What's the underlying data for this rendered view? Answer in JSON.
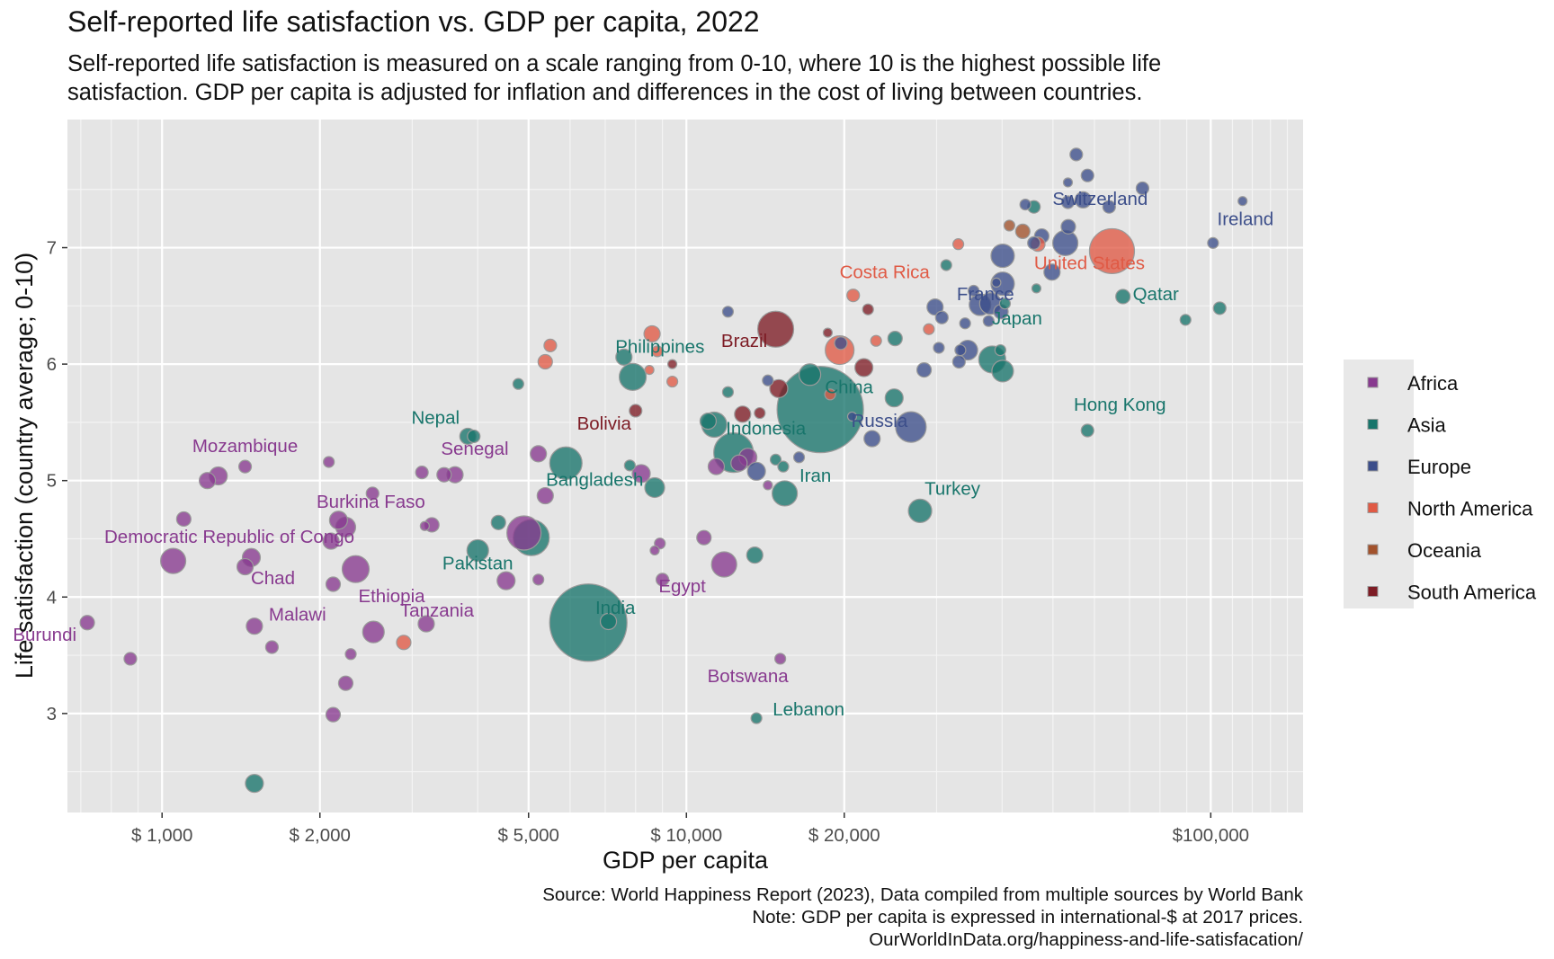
{
  "title": "Self-reported life satisfaction vs. GDP per capita, 2022",
  "subtitle_lines": [
    "Self-reported life satisfaction is measured on a scale ranging from 0-10, where 10 is the highest possible life",
    "satisfaction. GDP per capita is adjusted for inflation and differences in the cost of living between countries."
  ],
  "caption_lines": [
    "Source: World Happiness Report (2023), Data compiled from multiple sources by World Bank",
    "Note: GDP per capita is expressed in international-$ at 2017 prices.",
    "OurWorldInData.org/happiness-and-life-satisfacation/"
  ],
  "chart_data": {
    "type": "scatter",
    "x_scale": "log",
    "xlabel": "GDP per capita",
    "ylabel": "Life satisfaction (country average; 0-10)",
    "xlim": [
      660,
      150000
    ],
    "ylim": [
      2.15,
      8.1
    ],
    "x_ticks": [
      {
        "value": 1000,
        "label": "$  1,000"
      },
      {
        "value": 2000,
        "label": "$  2,000"
      },
      {
        "value": 5000,
        "label": "$  5,000"
      },
      {
        "value": 10000,
        "label": "$ 10,000"
      },
      {
        "value": 20000,
        "label": "$ 20,000"
      },
      {
        "value": 100000,
        "label": "$100,000"
      }
    ],
    "y_ticks": [
      3,
      4,
      5,
      6,
      7
    ],
    "grid": true,
    "legend_position": "right",
    "series": [
      {
        "name": "Africa",
        "color": "#883A8F"
      },
      {
        "name": "Asia",
        "color": "#18756B"
      },
      {
        "name": "Europe",
        "color": "#3C4E8A"
      },
      {
        "name": "North America",
        "color": "#E05A45"
      },
      {
        "name": "Oceania",
        "color": "#A2522C"
      },
      {
        "name": "South America",
        "color": "#7D1C25"
      }
    ],
    "points": [
      {
        "s": 0,
        "x": 720,
        "y": 3.78,
        "r": 8,
        "label": "Burundi",
        "lx": -12,
        "ly": 20,
        "anchor": "end"
      },
      {
        "s": 0,
        "x": 870,
        "y": 3.47,
        "r": 7
      },
      {
        "s": 0,
        "x": 1050,
        "y": 4.31,
        "r": 14,
        "label": "Democratic Republic of Congo",
        "lx": 2,
        "ly": -20,
        "anchor": "start",
        "start_at": 116
      },
      {
        "s": 0,
        "x": 1100,
        "y": 4.67,
        "r": 8
      },
      {
        "s": 0,
        "x": 1220,
        "y": 5.0,
        "r": 9
      },
      {
        "s": 0,
        "x": 1280,
        "y": 5.04,
        "r": 10
      },
      {
        "s": 0,
        "x": 1440,
        "y": 5.12,
        "r": 7,
        "label": "Mozambique",
        "lx": 0,
        "ly": -16,
        "anchor": "middle"
      },
      {
        "s": 0,
        "x": 1440,
        "y": 4.26,
        "r": 9
      },
      {
        "s": 0,
        "x": 1480,
        "y": 4.34,
        "r": 10,
        "label": "Chad",
        "lx": 24,
        "ly": 30,
        "anchor": "middle"
      },
      {
        "s": 0,
        "x": 1500,
        "y": 3.75,
        "r": 9,
        "label": "Malawi",
        "lx": 16,
        "ly": -6,
        "anchor": "start"
      },
      {
        "s": 0,
        "x": 1620,
        "y": 3.57,
        "r": 7
      },
      {
        "s": 0,
        "x": 2080,
        "y": 5.16,
        "r": 6
      },
      {
        "s": 0,
        "x": 2100,
        "y": 4.48,
        "r": 9
      },
      {
        "s": 0,
        "x": 2120,
        "y": 4.11,
        "r": 8
      },
      {
        "s": 0,
        "x": 2120,
        "y": 2.99,
        "r": 8
      },
      {
        "s": 0,
        "x": 2170,
        "y": 4.66,
        "r": 10,
        "label": "Burkina Faso",
        "lx": 36,
        "ly": -14,
        "anchor": "middle"
      },
      {
        "s": 0,
        "x": 2240,
        "y": 4.6,
        "r": 11
      },
      {
        "s": 0,
        "x": 2240,
        "y": 3.26,
        "r": 8
      },
      {
        "s": 0,
        "x": 2290,
        "y": 3.51,
        "r": 6
      },
      {
        "s": 0,
        "x": 2340,
        "y": 4.24,
        "r": 15,
        "label": "Ethiopia",
        "lx": 40,
        "ly": 37,
        "anchor": "middle"
      },
      {
        "s": 0,
        "x": 2520,
        "y": 4.89,
        "r": 7
      },
      {
        "s": 0,
        "x": 2530,
        "y": 3.7,
        "r": 12
      },
      {
        "s": 0,
        "x": 3130,
        "y": 5.07,
        "r": 7
      },
      {
        "s": 0,
        "x": 3170,
        "y": 4.61,
        "r": 5
      },
      {
        "s": 0,
        "x": 3190,
        "y": 3.77,
        "r": 9,
        "label": "Tanzania",
        "lx": 12,
        "ly": -8,
        "anchor": "middle"
      },
      {
        "s": 0,
        "x": 3270,
        "y": 4.62,
        "r": 8
      },
      {
        "s": 0,
        "x": 3450,
        "y": 5.05,
        "r": 8
      },
      {
        "s": 0,
        "x": 3620,
        "y": 5.05,
        "r": 9,
        "label": "Senegal",
        "lx": 22,
        "ly": -22,
        "anchor": "middle"
      },
      {
        "s": 0,
        "x": 4530,
        "y": 4.14,
        "r": 10
      },
      {
        "s": 0,
        "x": 4900,
        "y": 4.55,
        "r": 19
      },
      {
        "s": 0,
        "x": 5220,
        "y": 4.15,
        "r": 6
      },
      {
        "s": 0,
        "x": 5220,
        "y": 5.23,
        "r": 9
      },
      {
        "s": 0,
        "x": 5380,
        "y": 4.87,
        "r": 9
      },
      {
        "s": 0,
        "x": 8700,
        "y": 4.4,
        "r": 5
      },
      {
        "s": 0,
        "x": 8900,
        "y": 4.46,
        "r": 6
      },
      {
        "s": 0,
        "x": 9000,
        "y": 4.15,
        "r": 7,
        "label": "Egypt",
        "lx": 22,
        "ly": 14,
        "anchor": "middle"
      },
      {
        "s": 0,
        "x": 8200,
        "y": 5.06,
        "r": 10
      },
      {
        "s": 0,
        "x": 10800,
        "y": 4.51,
        "r": 8
      },
      {
        "s": 0,
        "x": 11400,
        "y": 5.12,
        "r": 9
      },
      {
        "s": 0,
        "x": 11800,
        "y": 4.28,
        "r": 14
      },
      {
        "s": 0,
        "x": 12600,
        "y": 5.15,
        "r": 9
      },
      {
        "s": 0,
        "x": 13100,
        "y": 5.2,
        "r": 10
      },
      {
        "s": 0,
        "x": 14300,
        "y": 4.96,
        "r": 5
      },
      {
        "s": 0,
        "x": 15100,
        "y": 3.47,
        "r": 6,
        "label": "Botswana",
        "lx": -36,
        "ly": 26,
        "anchor": "middle"
      },
      {
        "s": 1,
        "x": 1500,
        "y": 2.4,
        "r": 10
      },
      {
        "s": 1,
        "x": 3830,
        "y": 5.38,
        "r": 9,
        "label": "Nepal",
        "lx": -36,
        "ly": -14,
        "anchor": "middle"
      },
      {
        "s": 1,
        "x": 3930,
        "y": 5.38,
        "r": 7
      },
      {
        "s": 1,
        "x": 4000,
        "y": 4.4,
        "r": 12,
        "label": "Pakistan",
        "lx": 0,
        "ly": 21,
        "anchor": "middle"
      },
      {
        "s": 1,
        "x": 4380,
        "y": 4.64,
        "r": 8
      },
      {
        "s": 1,
        "x": 4780,
        "y": 5.83,
        "r": 6
      },
      {
        "s": 1,
        "x": 5060,
        "y": 4.51,
        "r": 20
      },
      {
        "s": 1,
        "x": 5890,
        "y": 5.15,
        "r": 18,
        "label": "Bangladesh",
        "lx": 32,
        "ly": 25,
        "anchor": "middle"
      },
      {
        "s": 1,
        "x": 6500,
        "y": 3.78,
        "r": 43,
        "label": "India",
        "lx": 30,
        "ly": -10,
        "anchor": "middle"
      },
      {
        "s": 1,
        "x": 7100,
        "y": 3.79,
        "r": 9
      },
      {
        "s": 1,
        "x": 7600,
        "y": 6.06,
        "r": 9,
        "label": "Philippines",
        "lx": 40,
        "ly": -5,
        "anchor": "middle"
      },
      {
        "s": 1,
        "x": 7900,
        "y": 5.89,
        "r": 15
      },
      {
        "s": 1,
        "x": 7800,
        "y": 5.13,
        "r": 6
      },
      {
        "s": 1,
        "x": 8700,
        "y": 4.94,
        "r": 11
      },
      {
        "s": 1,
        "x": 11000,
        "y": 5.51,
        "r": 9
      },
      {
        "s": 1,
        "x": 11300,
        "y": 5.48,
        "r": 14
      },
      {
        "s": 1,
        "x": 12000,
        "y": 5.76,
        "r": 6
      },
      {
        "s": 1,
        "x": 12300,
        "y": 5.24,
        "r": 22,
        "label": "Indonesia",
        "lx": 36,
        "ly": -20,
        "anchor": "middle"
      },
      {
        "s": 1,
        "x": 13500,
        "y": 4.36,
        "r": 9
      },
      {
        "s": 1,
        "x": 14800,
        "y": 5.18,
        "r": 6
      },
      {
        "s": 1,
        "x": 15300,
        "y": 5.12,
        "r": 6
      },
      {
        "s": 1,
        "x": 15400,
        "y": 4.89,
        "r": 14,
        "label": "Iran",
        "lx": 34,
        "ly": -13,
        "anchor": "middle"
      },
      {
        "s": 1,
        "x": 13600,
        "y": 2.96,
        "r": 6,
        "label": "Lebanon",
        "lx": 58,
        "ly": -3,
        "anchor": "middle"
      },
      {
        "s": 1,
        "x": 17200,
        "y": 5.91,
        "r": 12
      },
      {
        "s": 1,
        "x": 18000,
        "y": 5.61,
        "r": 48,
        "label": "China",
        "lx": 32,
        "ly": -18,
        "anchor": "middle"
      },
      {
        "s": 1,
        "x": 24900,
        "y": 5.71,
        "r": 10
      },
      {
        "s": 1,
        "x": 25000,
        "y": 6.22,
        "r": 8
      },
      {
        "s": 1,
        "x": 27900,
        "y": 4.74,
        "r": 13,
        "label": "Turkey",
        "lx": 36,
        "ly": -18,
        "anchor": "middle"
      },
      {
        "s": 1,
        "x": 31300,
        "y": 6.85,
        "r": 6
      },
      {
        "s": 1,
        "x": 38300,
        "y": 6.04,
        "r": 15
      },
      {
        "s": 1,
        "x": 39700,
        "y": 6.12,
        "r": 6
      },
      {
        "s": 1,
        "x": 40100,
        "y": 5.94,
        "r": 12,
        "label": "Japan",
        "lx": 16,
        "ly": -52,
        "anchor": "middle"
      },
      {
        "s": 1,
        "x": 40500,
        "y": 6.52,
        "r": 6
      },
      {
        "s": 1,
        "x": 46500,
        "y": 6.65,
        "r": 5
      },
      {
        "s": 1,
        "x": 46000,
        "y": 7.35,
        "r": 7
      },
      {
        "s": 1,
        "x": 58200,
        "y": 5.43,
        "r": 7,
        "label": "Hong Kong",
        "lx": 36,
        "ly": -22,
        "anchor": "middle"
      },
      {
        "s": 1,
        "x": 68000,
        "y": 6.58,
        "r": 8
      },
      {
        "s": 1,
        "x": 89500,
        "y": 6.38,
        "r": 6,
        "label": "Qatar",
        "lx": -33,
        "ly": -22,
        "anchor": "middle"
      },
      {
        "s": 1,
        "x": 104000,
        "y": 6.48,
        "r": 7
      },
      {
        "s": 2,
        "x": 12000,
        "y": 6.45,
        "r": 6
      },
      {
        "s": 2,
        "x": 14300,
        "y": 5.86,
        "r": 6
      },
      {
        "s": 2,
        "x": 13600,
        "y": 5.08,
        "r": 10
      },
      {
        "s": 2,
        "x": 16400,
        "y": 5.2,
        "r": 6
      },
      {
        "s": 2,
        "x": 19700,
        "y": 6.18,
        "r": 7
      },
      {
        "s": 2,
        "x": 20700,
        "y": 5.55,
        "r": 5
      },
      {
        "s": 2,
        "x": 22600,
        "y": 5.36,
        "r": 9
      },
      {
        "s": 2,
        "x": 26800,
        "y": 5.46,
        "r": 17,
        "label": "Russia",
        "lx": -35,
        "ly": 0,
        "anchor": "middle"
      },
      {
        "s": 2,
        "x": 28400,
        "y": 5.95,
        "r": 8
      },
      {
        "s": 2,
        "x": 29800,
        "y": 6.49,
        "r": 9
      },
      {
        "s": 2,
        "x": 30300,
        "y": 6.14,
        "r": 6
      },
      {
        "s": 2,
        "x": 30700,
        "y": 6.4,
        "r": 7
      },
      {
        "s": 2,
        "x": 33100,
        "y": 6.02,
        "r": 7
      },
      {
        "s": 2,
        "x": 33300,
        "y": 6.12,
        "r": 6
      },
      {
        "s": 2,
        "x": 34400,
        "y": 6.12,
        "r": 11
      },
      {
        "s": 2,
        "x": 34000,
        "y": 6.35,
        "r": 6
      },
      {
        "s": 2,
        "x": 35300,
        "y": 6.63,
        "r": 6
      },
      {
        "s": 2,
        "x": 36300,
        "y": 6.51,
        "r": 12,
        "label": "France",
        "lx": 6,
        "ly": -5,
        "anchor": "middle"
      },
      {
        "s": 2,
        "x": 37700,
        "y": 6.37,
        "r": 6
      },
      {
        "s": 2,
        "x": 38000,
        "y": 6.52,
        "r": 12
      },
      {
        "s": 2,
        "x": 39800,
        "y": 6.45,
        "r": 8
      },
      {
        "s": 2,
        "x": 40100,
        "y": 6.69,
        "r": 13
      },
      {
        "s": 2,
        "x": 40100,
        "y": 6.93,
        "r": 13
      },
      {
        "s": 2,
        "x": 39000,
        "y": 6.7,
        "r": 5
      },
      {
        "s": 2,
        "x": 44300,
        "y": 7.37,
        "r": 6
      },
      {
        "s": 2,
        "x": 46000,
        "y": 7.04,
        "r": 7
      },
      {
        "s": 2,
        "x": 47600,
        "y": 7.1,
        "r": 8
      },
      {
        "s": 2,
        "x": 49800,
        "y": 6.79,
        "r": 9
      },
      {
        "s": 2,
        "x": 52800,
        "y": 7.04,
        "r": 14
      },
      {
        "s": 2,
        "x": 53500,
        "y": 7.18,
        "r": 8
      },
      {
        "s": 2,
        "x": 53400,
        "y": 7.39,
        "r": 7
      },
      {
        "s": 2,
        "x": 53400,
        "y": 7.56,
        "r": 5
      },
      {
        "s": 2,
        "x": 55400,
        "y": 7.8,
        "r": 7
      },
      {
        "s": 2,
        "x": 57100,
        "y": 7.41,
        "r": 9
      },
      {
        "s": 2,
        "x": 58200,
        "y": 7.62,
        "r": 7
      },
      {
        "s": 2,
        "x": 64000,
        "y": 7.35,
        "r": 7,
        "label": "Switzerland",
        "lx": -10,
        "ly": -2,
        "anchor": "middle"
      },
      {
        "s": 2,
        "x": 74100,
        "y": 7.51,
        "r": 7
      },
      {
        "s": 2,
        "x": 101000,
        "y": 7.04,
        "r": 6,
        "label": "Ireland",
        "lx": 36,
        "ly": -20,
        "anchor": "middle"
      },
      {
        "s": 2,
        "x": 115000,
        "y": 7.4,
        "r": 5
      },
      {
        "s": 3,
        "x": 2890,
        "y": 3.61,
        "r": 8
      },
      {
        "s": 3,
        "x": 5380,
        "y": 6.02,
        "r": 8
      },
      {
        "s": 3,
        "x": 5500,
        "y": 6.16,
        "r": 7
      },
      {
        "s": 3,
        "x": 8600,
        "y": 6.26,
        "r": 9
      },
      {
        "s": 3,
        "x": 8800,
        "y": 6.11,
        "r": 6
      },
      {
        "s": 3,
        "x": 9400,
        "y": 5.85,
        "r": 6
      },
      {
        "s": 3,
        "x": 8500,
        "y": 5.95,
        "r": 5
      },
      {
        "s": 3,
        "x": 19600,
        "y": 6.12,
        "r": 16
      },
      {
        "s": 3,
        "x": 18800,
        "y": 5.74,
        "r": 6
      },
      {
        "s": 3,
        "x": 20800,
        "y": 6.59,
        "r": 7,
        "label": "Costa Rica",
        "lx": 35,
        "ly": -19,
        "anchor": "middle"
      },
      {
        "s": 3,
        "x": 23000,
        "y": 6.2,
        "r": 6
      },
      {
        "s": 3,
        "x": 29000,
        "y": 6.3,
        "r": 6
      },
      {
        "s": 3,
        "x": 33000,
        "y": 7.03,
        "r": 6
      },
      {
        "s": 3,
        "x": 46800,
        "y": 7.03,
        "r": 8
      },
      {
        "s": 3,
        "x": 64800,
        "y": 6.97,
        "r": 25,
        "label": "United States",
        "lx": -25,
        "ly": 20,
        "anchor": "middle"
      },
      {
        "s": 4,
        "x": 41300,
        "y": 7.19,
        "r": 6
      },
      {
        "s": 4,
        "x": 43800,
        "y": 7.14,
        "r": 8
      },
      {
        "s": 5,
        "x": 8000,
        "y": 5.6,
        "r": 7,
        "label": "Bolivia",
        "lx": -35,
        "ly": 21,
        "anchor": "middle"
      },
      {
        "s": 5,
        "x": 9400,
        "y": 6.0,
        "r": 5
      },
      {
        "s": 5,
        "x": 12800,
        "y": 5.57,
        "r": 9
      },
      {
        "s": 5,
        "x": 13800,
        "y": 5.58,
        "r": 6
      },
      {
        "s": 5,
        "x": 14800,
        "y": 6.3,
        "r": 20,
        "label": "Brazil",
        "lx": -35,
        "ly": 20,
        "anchor": "middle"
      },
      {
        "s": 5,
        "x": 15000,
        "y": 5.79,
        "r": 10
      },
      {
        "s": 5,
        "x": 18600,
        "y": 6.27,
        "r": 5
      },
      {
        "s": 5,
        "x": 21800,
        "y": 5.97,
        "r": 10
      },
      {
        "s": 5,
        "x": 22200,
        "y": 6.47,
        "r": 6
      }
    ]
  }
}
